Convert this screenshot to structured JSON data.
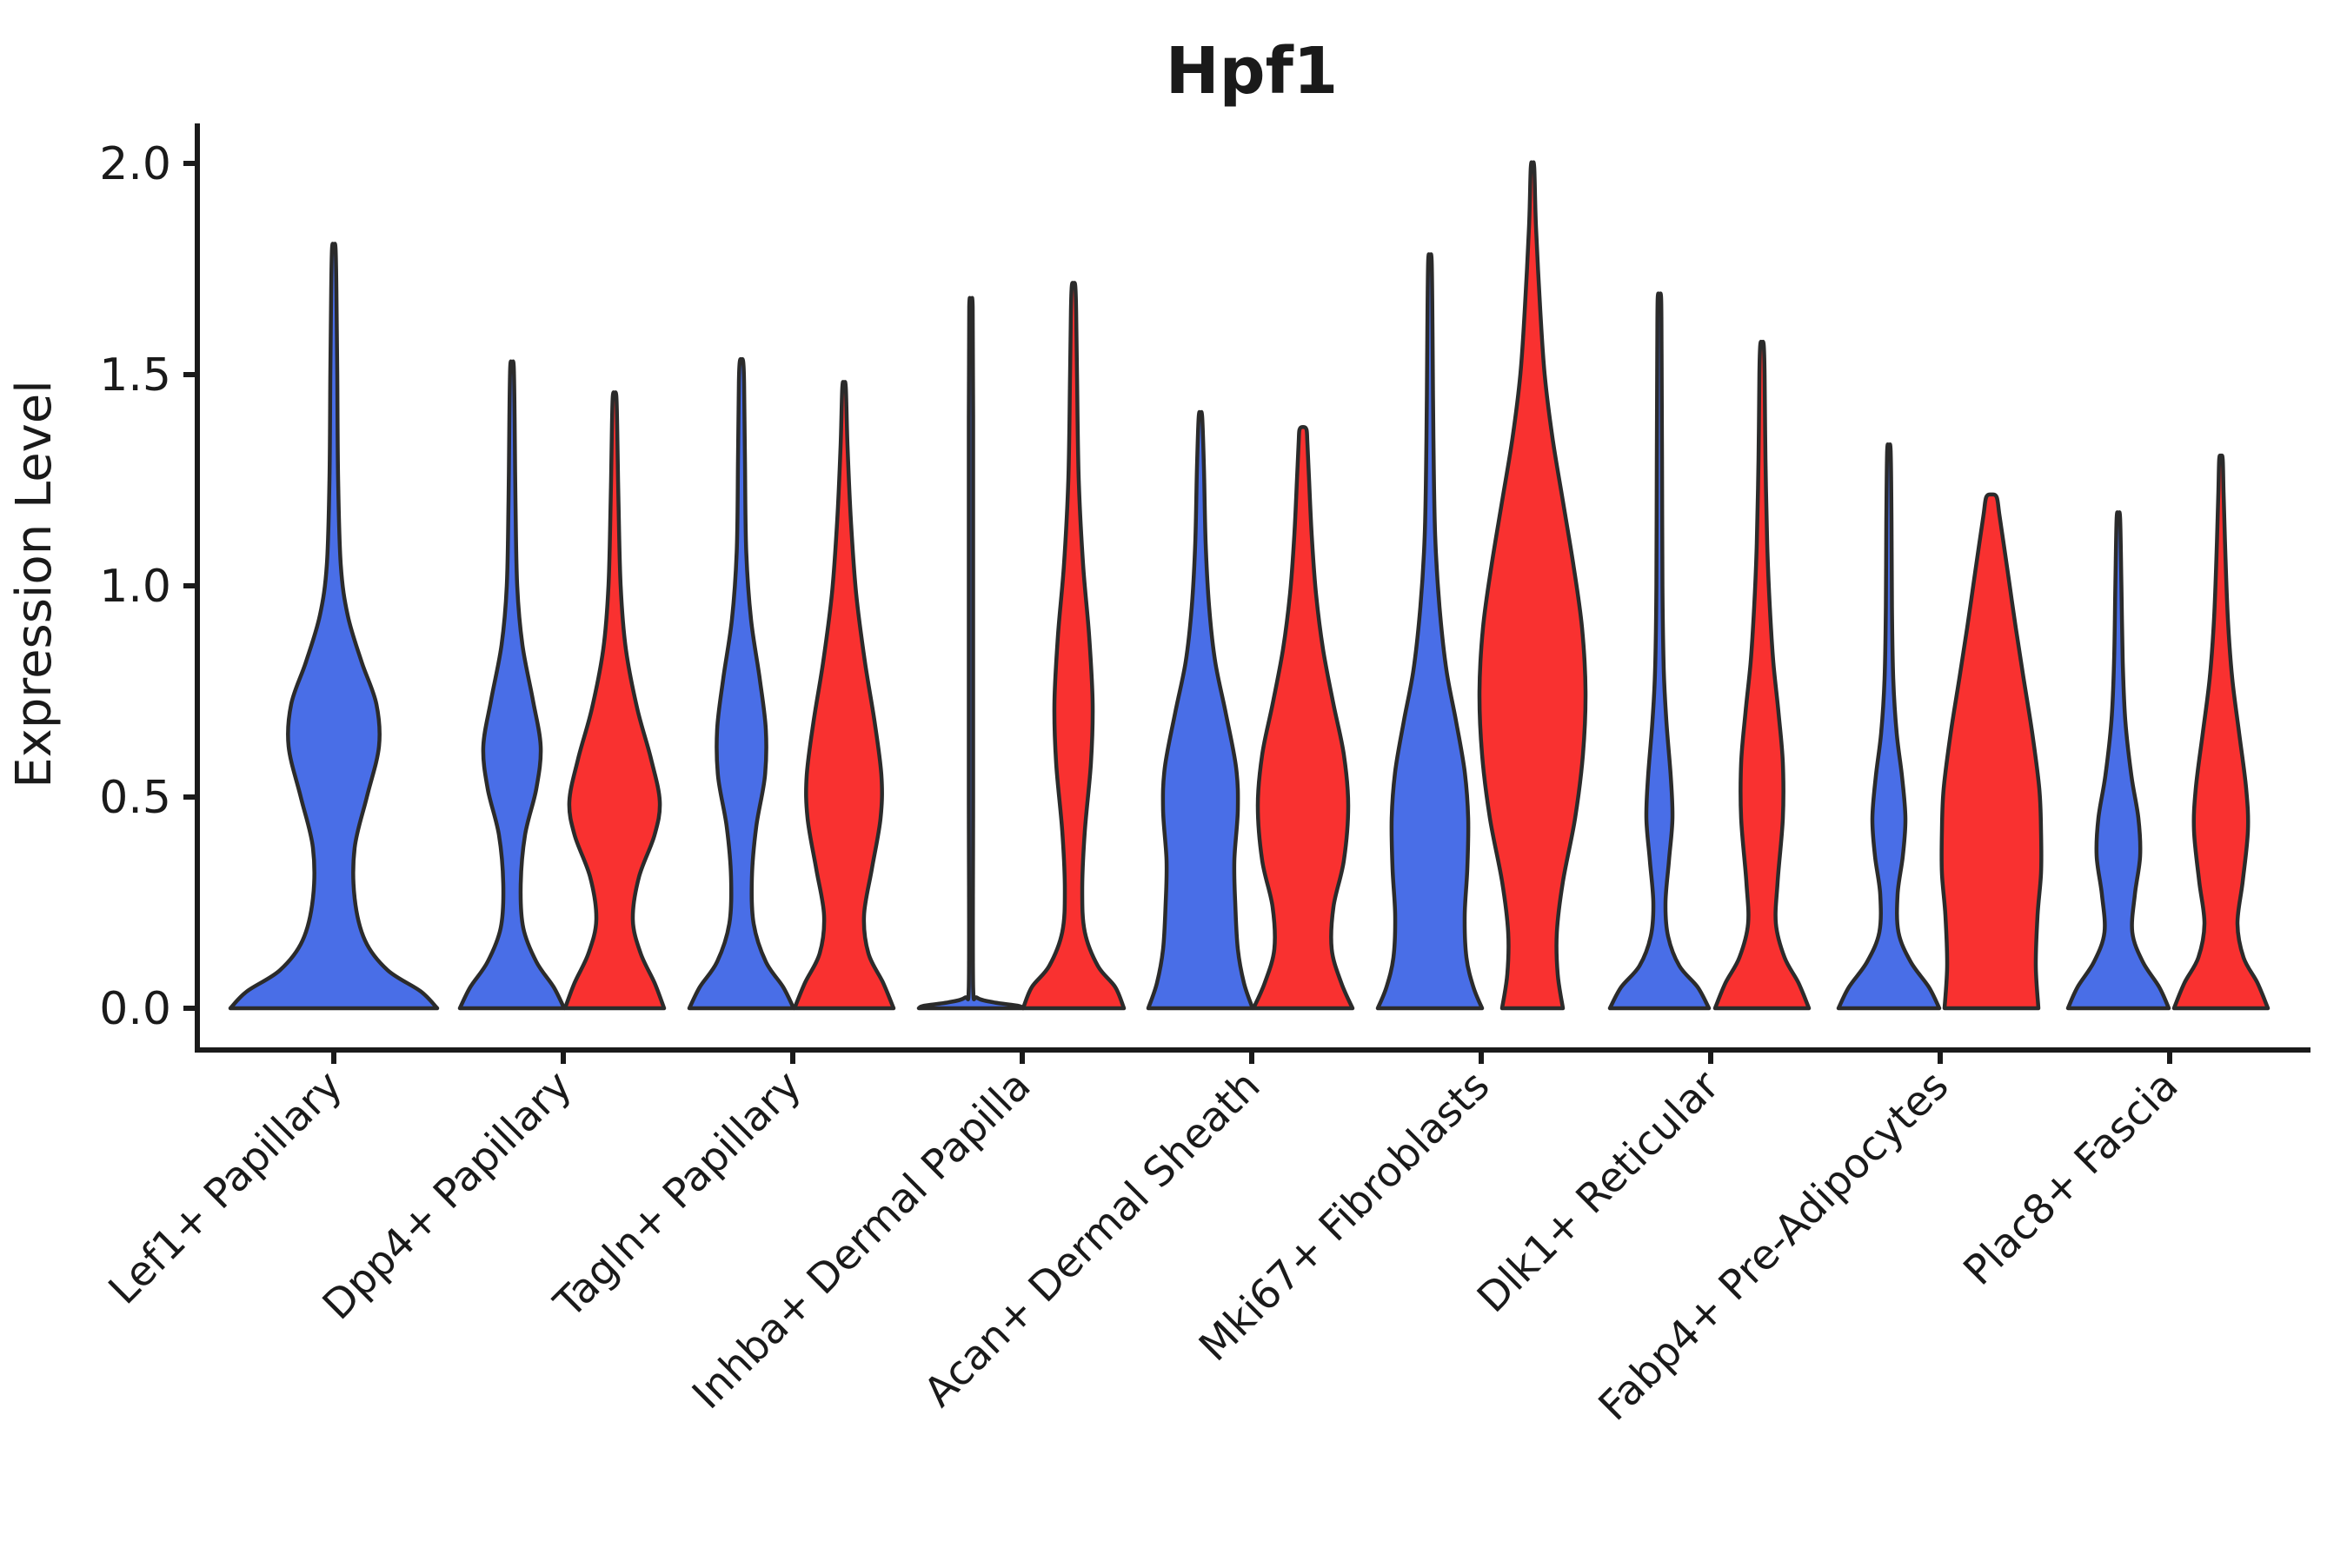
{
  "chart_data": {
    "type": "violin",
    "title": "Hpf1",
    "ylabel": "Expression Level",
    "xlabel": "",
    "ylim": [
      -0.1,
      2.09
    ],
    "yticks": [
      0.0,
      0.5,
      1.0,
      1.5,
      2.0
    ],
    "ytick_labels": [
      "0.0",
      "0.5",
      "1.0",
      "1.5",
      "2.0"
    ],
    "grid": false,
    "legend": "none",
    "categories": [
      "Lef1+ Papillary",
      "Dpp4+ Papillary",
      "Tagln+ Papillary",
      "Inhba+ Dermal Papilla",
      "Acan+ Dermal Sheath",
      "Mki67+ Fibroblasts",
      "Dlk1+ Reticular",
      "Fabp4+ Pre-Adipocytes",
      "Plac8+ Fascia"
    ],
    "series": [
      {
        "name": "condition-blue",
        "color": "#496EE7"
      },
      {
        "name": "condition-red",
        "color": "#F93130"
      }
    ],
    "outline_color": "#2B2B2B",
    "violins": [
      {
        "category": 0,
        "series": 0,
        "side": "center",
        "max_expr": 1.8,
        "profile": [
          [
            0,
            119
          ],
          [
            0.04,
            100
          ],
          [
            0.09,
            62
          ],
          [
            0.16,
            36
          ],
          [
            0.26,
            24
          ],
          [
            0.38,
            24
          ],
          [
            0.5,
            38
          ],
          [
            0.62,
            52
          ],
          [
            0.72,
            49
          ],
          [
            0.82,
            32
          ],
          [
            0.93,
            16
          ],
          [
            1.05,
            8
          ],
          [
            1.25,
            5
          ],
          [
            1.5,
            4
          ],
          [
            1.7,
            3
          ],
          [
            1.8,
            2
          ]
        ]
      },
      {
        "category": 1,
        "series": 0,
        "side": "left",
        "max_expr": 1.52,
        "profile": [
          [
            0,
            60
          ],
          [
            0.05,
            48
          ],
          [
            0.11,
            28
          ],
          [
            0.19,
            13
          ],
          [
            0.29,
            10
          ],
          [
            0.41,
            15
          ],
          [
            0.52,
            28
          ],
          [
            0.62,
            33
          ],
          [
            0.73,
            24
          ],
          [
            0.86,
            12
          ],
          [
            1.0,
            6
          ],
          [
            1.2,
            4
          ],
          [
            1.4,
            3
          ],
          [
            1.52,
            2
          ]
        ]
      },
      {
        "category": 1,
        "series": 1,
        "side": "right",
        "max_expr": 1.45,
        "profile": [
          [
            0,
            57
          ],
          [
            0.06,
            46
          ],
          [
            0.13,
            30
          ],
          [
            0.21,
            21
          ],
          [
            0.31,
            28
          ],
          [
            0.41,
            46
          ],
          [
            0.49,
            52
          ],
          [
            0.59,
            42
          ],
          [
            0.71,
            26
          ],
          [
            0.85,
            13
          ],
          [
            1.0,
            7
          ],
          [
            1.2,
            4.5
          ],
          [
            1.38,
            3
          ],
          [
            1.45,
            2
          ]
        ]
      },
      {
        "category": 2,
        "series": 0,
        "side": "left",
        "max_expr": 1.53,
        "profile": [
          [
            0,
            60
          ],
          [
            0.05,
            48
          ],
          [
            0.11,
            28
          ],
          [
            0.2,
            14
          ],
          [
            0.31,
            12
          ],
          [
            0.43,
            17
          ],
          [
            0.55,
            27
          ],
          [
            0.66,
            28
          ],
          [
            0.78,
            21
          ],
          [
            0.92,
            11
          ],
          [
            1.08,
            5.5
          ],
          [
            1.3,
            4
          ],
          [
            1.48,
            3
          ],
          [
            1.53,
            2
          ]
        ]
      },
      {
        "category": 2,
        "series": 1,
        "side": "right",
        "max_expr": 1.47,
        "profile": [
          [
            0,
            57
          ],
          [
            0.06,
            45
          ],
          [
            0.13,
            28
          ],
          [
            0.22,
            23
          ],
          [
            0.33,
            32
          ],
          [
            0.45,
            42
          ],
          [
            0.55,
            43
          ],
          [
            0.68,
            35
          ],
          [
            0.82,
            24
          ],
          [
            0.98,
            14
          ],
          [
            1.15,
            8
          ],
          [
            1.33,
            4
          ],
          [
            1.47,
            2
          ]
        ]
      },
      {
        "category": 3,
        "series": 0,
        "side": "left",
        "max_expr": 1.66,
        "profile": [
          [
            0,
            60
          ],
          [
            0.006,
            54
          ],
          [
            0.014,
            26
          ],
          [
            0.025,
            7
          ],
          [
            0.05,
            2.5
          ],
          [
            0.5,
            2.5
          ],
          [
            1.0,
            2.5
          ],
          [
            1.4,
            2.5
          ],
          [
            1.66,
            2
          ]
        ]
      },
      {
        "category": 3,
        "series": 1,
        "side": "right",
        "max_expr": 1.71,
        "profile": [
          [
            0,
            58
          ],
          [
            0.05,
            48
          ],
          [
            0.1,
            28
          ],
          [
            0.18,
            13
          ],
          [
            0.28,
            10
          ],
          [
            0.42,
            13
          ],
          [
            0.58,
            20
          ],
          [
            0.72,
            22
          ],
          [
            0.88,
            18
          ],
          [
            1.05,
            11
          ],
          [
            1.25,
            6
          ],
          [
            1.5,
            4
          ],
          [
            1.65,
            3
          ],
          [
            1.71,
            2
          ]
        ]
      },
      {
        "category": 4,
        "series": 0,
        "side": "left",
        "max_expr": 1.4,
        "profile": [
          [
            0,
            60
          ],
          [
            0.06,
            50
          ],
          [
            0.14,
            43
          ],
          [
            0.25,
            40
          ],
          [
            0.35,
            39
          ],
          [
            0.47,
            43
          ],
          [
            0.57,
            41
          ],
          [
            0.7,
            29
          ],
          [
            0.82,
            17
          ],
          [
            0.95,
            10
          ],
          [
            1.1,
            6
          ],
          [
            1.28,
            4
          ],
          [
            1.4,
            2
          ]
        ]
      },
      {
        "category": 4,
        "series": 1,
        "side": "right",
        "max_expr": 1.37,
        "profile": [
          [
            0,
            57
          ],
          [
            0.06,
            44
          ],
          [
            0.14,
            33
          ],
          [
            0.24,
            35
          ],
          [
            0.35,
            47
          ],
          [
            0.48,
            52
          ],
          [
            0.6,
            47
          ],
          [
            0.72,
            35
          ],
          [
            0.85,
            23
          ],
          [
            0.98,
            15
          ],
          [
            1.12,
            10
          ],
          [
            1.25,
            7
          ],
          [
            1.34,
            5
          ],
          [
            1.37,
            4
          ]
        ]
      },
      {
        "category": 5,
        "series": 0,
        "side": "left",
        "max_expr": 1.77,
        "profile": [
          [
            0,
            60
          ],
          [
            0.05,
            50
          ],
          [
            0.12,
            42
          ],
          [
            0.22,
            40
          ],
          [
            0.33,
            43
          ],
          [
            0.45,
            44
          ],
          [
            0.56,
            40
          ],
          [
            0.68,
            30
          ],
          [
            0.8,
            19
          ],
          [
            0.95,
            11
          ],
          [
            1.12,
            6
          ],
          [
            1.35,
            4
          ],
          [
            1.6,
            3
          ],
          [
            1.77,
            2
          ]
        ]
      },
      {
        "category": 5,
        "series": 1,
        "side": "right",
        "max_expr": 1.99,
        "profile": [
          [
            0,
            35
          ],
          [
            0.08,
            29
          ],
          [
            0.18,
            28
          ],
          [
            0.3,
            35
          ],
          [
            0.45,
            49
          ],
          [
            0.6,
            58
          ],
          [
            0.75,
            61
          ],
          [
            0.9,
            57
          ],
          [
            1.05,
            47
          ],
          [
            1.2,
            35
          ],
          [
            1.35,
            23
          ],
          [
            1.5,
            14
          ],
          [
            1.65,
            9
          ],
          [
            1.85,
            4
          ],
          [
            1.99,
            2
          ]
        ]
      },
      {
        "category": 6,
        "series": 0,
        "side": "left",
        "max_expr": 1.68,
        "profile": [
          [
            0,
            57
          ],
          [
            0.05,
            44
          ],
          [
            0.1,
            23
          ],
          [
            0.17,
            10
          ],
          [
            0.25,
            7
          ],
          [
            0.35,
            11
          ],
          [
            0.45,
            15
          ],
          [
            0.55,
            13
          ],
          [
            0.68,
            8
          ],
          [
            0.8,
            5
          ],
          [
            1.0,
            3.5
          ],
          [
            1.3,
            3
          ],
          [
            1.55,
            2.5
          ],
          [
            1.68,
            2
          ]
        ]
      },
      {
        "category": 6,
        "series": 1,
        "side": "right",
        "max_expr": 1.57,
        "profile": [
          [
            0,
            54
          ],
          [
            0.06,
            42
          ],
          [
            0.12,
            26
          ],
          [
            0.2,
            16
          ],
          [
            0.3,
            18
          ],
          [
            0.45,
            24
          ],
          [
            0.58,
            24
          ],
          [
            0.7,
            19
          ],
          [
            0.82,
            13
          ],
          [
            0.95,
            9
          ],
          [
            1.1,
            6
          ],
          [
            1.3,
            4
          ],
          [
            1.5,
            3
          ],
          [
            1.57,
            2
          ]
        ]
      },
      {
        "category": 7,
        "series": 0,
        "side": "left",
        "max_expr": 1.32,
        "profile": [
          [
            0,
            58
          ],
          [
            0.05,
            46
          ],
          [
            0.11,
            25
          ],
          [
            0.18,
            11
          ],
          [
            0.27,
            10
          ],
          [
            0.36,
            16
          ],
          [
            0.45,
            19
          ],
          [
            0.55,
            15
          ],
          [
            0.65,
            9
          ],
          [
            0.78,
            5
          ],
          [
            0.95,
            3.5
          ],
          [
            1.15,
            3
          ],
          [
            1.32,
            2
          ]
        ]
      },
      {
        "category": 7,
        "series": 1,
        "side": "right",
        "max_expr": 1.21,
        "profile": [
          [
            0,
            54
          ],
          [
            0.1,
            51
          ],
          [
            0.22,
            53
          ],
          [
            0.32,
            57
          ],
          [
            0.42,
            57
          ],
          [
            0.52,
            55
          ],
          [
            0.65,
            47
          ],
          [
            0.78,
            37
          ],
          [
            0.9,
            28
          ],
          [
            1.0,
            21
          ],
          [
            1.1,
            14
          ],
          [
            1.17,
            9
          ],
          [
            1.21,
            6
          ]
        ]
      },
      {
        "category": 8,
        "series": 0,
        "side": "left",
        "max_expr": 1.16,
        "profile": [
          [
            0,
            58
          ],
          [
            0.05,
            47
          ],
          [
            0.11,
            28
          ],
          [
            0.18,
            16
          ],
          [
            0.27,
            19
          ],
          [
            0.36,
            25
          ],
          [
            0.45,
            23
          ],
          [
            0.55,
            15
          ],
          [
            0.68,
            8
          ],
          [
            0.82,
            5
          ],
          [
            1.0,
            3.5
          ],
          [
            1.16,
            2
          ]
        ]
      },
      {
        "category": 8,
        "series": 1,
        "side": "right",
        "max_expr": 1.3,
        "profile": [
          [
            0,
            54
          ],
          [
            0.06,
            42
          ],
          [
            0.12,
            26
          ],
          [
            0.2,
            19
          ],
          [
            0.3,
            25
          ],
          [
            0.42,
            31
          ],
          [
            0.52,
            29
          ],
          [
            0.65,
            21
          ],
          [
            0.78,
            13
          ],
          [
            0.92,
            8
          ],
          [
            1.08,
            5
          ],
          [
            1.22,
            3
          ],
          [
            1.3,
            2
          ]
        ]
      }
    ]
  }
}
